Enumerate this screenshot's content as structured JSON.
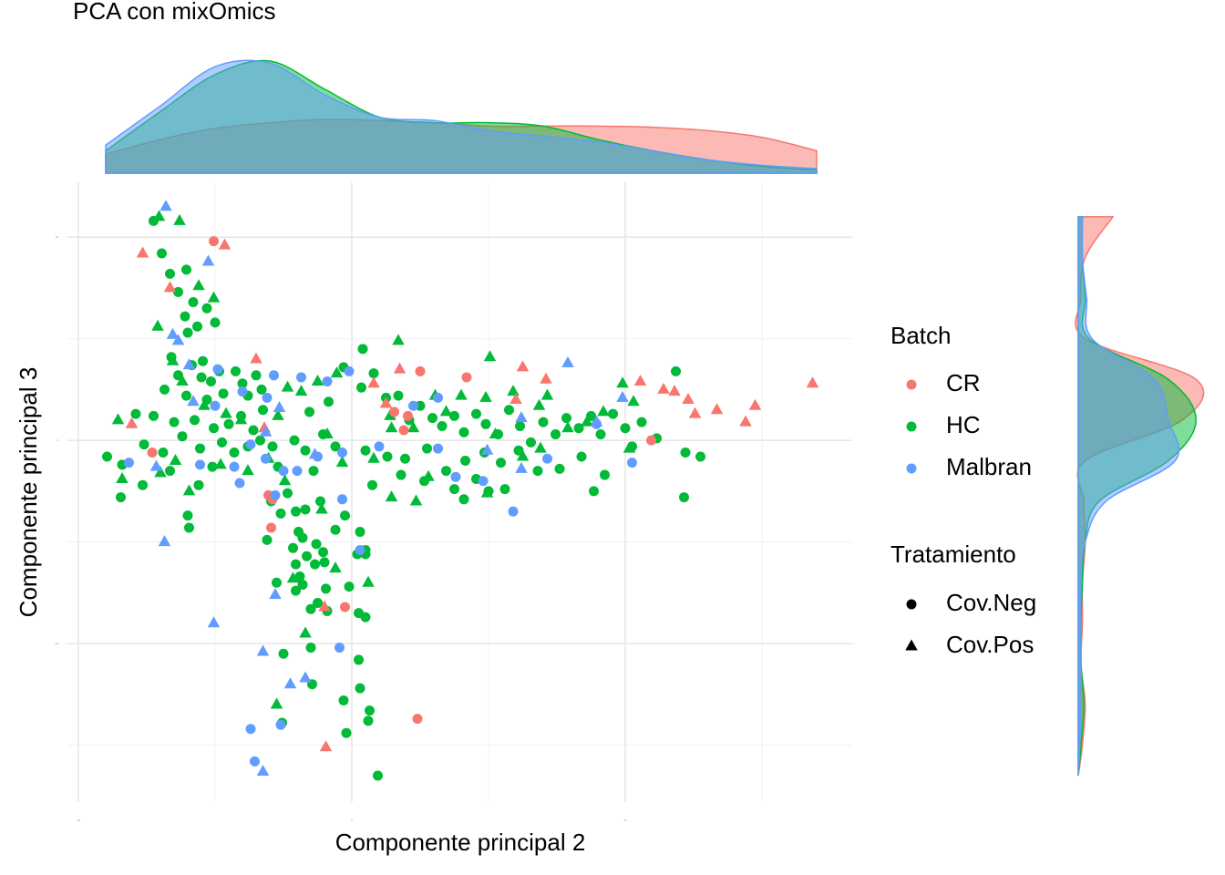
{
  "chart_data": {
    "type": "scatter",
    "title": "PCA con mixOmics",
    "x_label": "Componente principal 2",
    "y_label": "Componente principal 3",
    "xlim": [
      -20.8,
      36.6
    ],
    "ylim": [
      -17.8,
      12.7
    ],
    "xticks": [
      -20,
      0,
      20
    ],
    "yticks": [
      -10,
      0,
      10
    ],
    "x_minor": [
      -10,
      10,
      30
    ],
    "y_minor": [
      -15,
      -5,
      5
    ],
    "grid": true,
    "legends": [
      {
        "title": "Batch",
        "entries": [
          {
            "name": "CR",
            "color": "#F8766D"
          },
          {
            "name": "HC",
            "color": "#00BA38"
          },
          {
            "name": "Malbran",
            "color": "#619CFF"
          }
        ]
      },
      {
        "title": "Tratamiento",
        "entries": [
          {
            "name": "Cov.Neg",
            "shape": "circle"
          },
          {
            "name": "Cov.Pos",
            "shape": "triangle"
          }
        ]
      }
    ],
    "series": [
      {
        "color": "#00BA38",
        "shape": "circle",
        "x": [
          -14.5,
          -13.9,
          -13.3,
          -12.1,
          -12.7,
          -11.6,
          -12.2,
          -10.6,
          -12.0,
          -11.3,
          -10.0,
          -13.2,
          -11.7,
          -10.9,
          -12.7,
          -11.0,
          -10.3,
          -9.7,
          -13.7,
          -12.1,
          -10.6,
          -9.4,
          -8.5,
          -8.0,
          -7.6,
          -7.0,
          -6.6,
          -14.5,
          -13.0,
          -11.5,
          -10.1,
          -9.0,
          -8.1,
          -7.2,
          -6.5,
          -15.8,
          -17.9,
          -16.8,
          -15.2,
          -13.8,
          -12.4,
          -11.1,
          -9.5,
          -8.6,
          -7.6,
          -6.7,
          -16.9,
          -15.3,
          -13.3,
          -11.2,
          -10.2,
          -12.0,
          -11.9,
          -5.8,
          -5.9,
          -5.2,
          -4.7,
          -4.1,
          -3.4,
          -2.3,
          -0.5,
          -1.2,
          -3.9,
          -4.3,
          -3.6,
          -2.6,
          0.6,
          1.0,
          -6.2,
          -4.1,
          -3.3,
          -2.1,
          0.4,
          1.0,
          -3.8,
          -2.7,
          -2.0,
          -3.6,
          -1.9,
          -0.2,
          -4.1,
          -5.5,
          -2.5,
          -3.0,
          0.5,
          -1.8,
          1.0,
          -5.0,
          -3.0,
          0.5,
          -0.6,
          0.6,
          1.3,
          -0.4,
          1.2,
          -2.9,
          1.9,
          -5.1,
          0.7,
          1.6,
          2.5,
          3.4,
          4.2,
          5.0,
          5.9,
          6.6,
          7.5,
          8.2,
          9.1,
          9.8,
          10.7,
          11.5,
          12.3,
          13.1,
          14.0,
          14.9,
          15.7,
          16.6,
          17.5,
          18.2,
          19.1,
          20.0,
          21.2,
          22.3,
          23.7,
          25.5,
          24.4,
          20.5,
          1.0,
          2.6,
          3.9,
          5.5,
          6.9,
          8.3,
          9.7,
          10.9,
          12.2,
          13.6,
          15.2,
          16.8,
          18.5,
          1.5,
          3.6,
          5.3,
          7.5,
          9.1,
          11.2,
          17.7,
          24.3,
          0.8,
          -0.6,
          -1.7,
          -3.1,
          -2.1,
          -4.2,
          -3.4,
          -1.2,
          -5.4,
          -2.8,
          8.2,
          10.0
        ],
        "y": [
          10.8,
          9.2,
          8.2,
          8.4,
          7.3,
          6.8,
          6.1,
          6.5,
          5.3,
          5.6,
          5.8,
          4.1,
          3.7,
          3.9,
          3.2,
          3.1,
          2.9,
          3.4,
          2.5,
          2.2,
          2.0,
          2.3,
          3.4,
          2.8,
          2.2,
          3.2,
          2.5,
          1.2,
          0.9,
          1.0,
          0.6,
          0.8,
          1.2,
          0.5,
          1.5,
          1.3,
          -0.8,
          -1.2,
          -0.2,
          -0.6,
          0.2,
          -0.4,
          -0.1,
          -0.6,
          -0.3,
          0.0,
          -2.8,
          -2.2,
          -1.5,
          -2.2,
          -1.3,
          -3.7,
          -4.3,
          -0.3,
          -3.0,
          -3.6,
          -2.6,
          -3.5,
          -3.4,
          -3.0,
          -3.7,
          -4.4,
          -4.5,
          -5.3,
          -4.8,
          -5.1,
          -4.5,
          -5.4,
          -4.9,
          -6.1,
          -5.7,
          -5.5,
          -5.6,
          -5.6,
          -6.7,
          -6.1,
          -6.0,
          -7.1,
          -7.3,
          -7.2,
          -7.4,
          -7.0,
          -8.0,
          -8.3,
          -8.5,
          -8.4,
          -8.7,
          -10.5,
          -10.2,
          -10.8,
          -12.8,
          -12.2,
          -13.3,
          -14.4,
          -13.8,
          -12.0,
          -16.5,
          -13.9,
          2.6,
          3.3,
          2.1,
          2.2,
          1.0,
          1.7,
          1.1,
          0.7,
          1.2,
          0.4,
          1.3,
          0.8,
          0.3,
          1.5,
          0.7,
          -0.1,
          0.9,
          0.3,
          1.1,
          0.6,
          1.2,
          0.3,
          1.3,
          0.6,
          0.9,
          0.1,
          3.4,
          -0.8,
          -0.6,
          -0.3,
          -0.5,
          -0.8,
          -0.9,
          -0.4,
          -1.5,
          -1.0,
          -0.6,
          -1.1,
          -0.5,
          -1.5,
          -1.4,
          -0.8,
          -1.7,
          -2.2,
          -1.7,
          -2.0,
          -2.4,
          -1.9,
          -2.4,
          -2.5,
          -2.8,
          4.5,
          3.6,
          1.9,
          1.4,
          0.3,
          0.0,
          -0.5,
          -0.3,
          -1.3,
          -1.5,
          -2.9,
          -2.5
        ]
      },
      {
        "color": "#00BA38",
        "shape": "triangle",
        "x": [
          -14.1,
          -12.6,
          -11.2,
          -10.1,
          -14.2,
          -13.1,
          -12.4,
          -10.8,
          -9.2,
          -8.1,
          -17.1,
          -12.9,
          -14.0,
          -9.6,
          -7.6,
          -6.1,
          -5.4,
          -4.7,
          -3.7,
          -2.5,
          -1.1,
          1.6,
          2.8,
          3.4,
          4.5,
          6.1,
          6.9,
          8.0,
          9.8,
          10.5,
          11.8,
          12.5,
          13.7,
          14.3,
          15.8,
          17.2,
          18.4,
          19.8,
          20.6,
          10.1,
          2.9,
          4.7,
          9.9,
          13.8,
          -4.3,
          -1.2,
          -5.5,
          -3.4,
          1.2,
          -4.9,
          -0.7,
          -1.8,
          5.6,
          20.3,
          -11.9,
          -16.8,
          -2.2,
          2.9
        ],
        "y": [
          11.0,
          10.8,
          7.6,
          7.0,
          5.6,
          3.9,
          2.9,
          1.7,
          1.3,
          1.0,
          1.0,
          -1.0,
          -1.6,
          -1.2,
          -1.5,
          -0.9,
          1.2,
          2.6,
          2.4,
          2.9,
          3.3,
          -0.9,
          1.2,
          4.9,
          0.6,
          2.2,
          1.4,
          2.2,
          2.1,
          0.3,
          2.4,
          -0.8,
          1.7,
          2.2,
          0.6,
          0.9,
          1.4,
          2.8,
          1.9,
          4.1,
          -2.8,
          -3.0,
          -2.6,
          -0.4,
          -6.8,
          -6.3,
          -13.0,
          -9.5,
          -7.0,
          -2.0,
          -1.1,
          0.3,
          -1.8,
          -0.4,
          -2.5,
          -1.9,
          -3.4,
          0.6
        ]
      },
      {
        "color": "#F8766D",
        "shape": "circle",
        "x": [
          -14.6,
          -5.9,
          -5.8,
          5.0,
          8.4,
          4.1,
          3.8,
          3.1,
          21.9,
          -0.5,
          4.8,
          -10.1,
          -6.1
        ],
        "y": [
          -0.6,
          -4.3,
          -2.9,
          3.4,
          3.1,
          1.2,
          0.5,
          1.4,
          0.0,
          -8.2,
          -13.7,
          9.8,
          -2.7
        ]
      },
      {
        "color": "#F8766D",
        "shape": "triangle",
        "x": [
          -15.3,
          -13.3,
          -9.3,
          -7.0,
          -6.4,
          -16.1,
          3.5,
          12.5,
          14.2,
          21.1,
          23.6,
          25.1,
          26.7,
          29.5,
          28.8,
          33.7,
          1.6,
          -2.0,
          -1.9,
          24.6,
          22.8,
          2.5,
          12.0
        ],
        "y": [
          9.2,
          7.5,
          9.6,
          4.0,
          0.6,
          0.8,
          3.5,
          3.6,
          3.0,
          2.9,
          2.4,
          1.3,
          1.5,
          1.7,
          0.9,
          2.8,
          2.8,
          -8.2,
          -15.1,
          2.0,
          2.5,
          1.8,
          2.0
        ]
      },
      {
        "color": "#619CFF",
        "shape": "circle",
        "x": [
          -9.8,
          -10.0,
          -8.0,
          -6.2,
          -5.7,
          -3.7,
          -1.8,
          -0.2,
          -16.3,
          -11.1,
          -8.6,
          -7.4,
          -6.3,
          -5.0,
          -4.0,
          -2.5,
          -8.2,
          -0.7,
          4.5,
          6.3,
          7.6,
          9.6,
          11.8,
          14.3,
          17.9,
          20.5,
          6.3,
          0.6,
          -0.9,
          -7.4,
          -7.1,
          -5.2,
          -0.7,
          -5.6,
          2.0
        ],
        "y": [
          3.5,
          1.7,
          2.4,
          2.1,
          3.2,
          3.1,
          2.9,
          3.4,
          -1.1,
          -1.2,
          -1.3,
          -0.2,
          -0.9,
          -1.5,
          -1.5,
          -0.8,
          -2.1,
          -2.9,
          1.7,
          2.1,
          -1.8,
          -2.0,
          -3.5,
          -0.9,
          0.8,
          -1.1,
          -0.4,
          -5.4,
          -10.2,
          -14.2,
          -15.8,
          -14.0,
          -0.6,
          -2.7,
          -0.3
        ]
      },
      {
        "color": "#619CFF",
        "shape": "triangle",
        "x": [
          -13.6,
          -10.5,
          -13.1,
          -12.7,
          -11.6,
          -11.9,
          -14.3,
          -13.7,
          -10.1,
          -6.5,
          -5.6,
          -3.4,
          -6.5,
          -4.5,
          -5.3,
          -6.3,
          9.9,
          12.4,
          15.8,
          17.9,
          19.8,
          12.4,
          -2.7
        ],
        "y": [
          11.5,
          8.8,
          5.2,
          4.9,
          1.9,
          3.7,
          -1.3,
          -5.0,
          -9.0,
          -10.4,
          -7.6,
          -11.7,
          -16.3,
          -12.0,
          1.6,
          0.4,
          -0.5,
          1.1,
          3.8,
          0.9,
          2.1,
          -1.4,
          -0.7
        ]
      }
    ],
    "top_density": {
      "x": [
        -18,
        -14,
        -10,
        -6,
        -2,
        2,
        6,
        10,
        14,
        18,
        22,
        26,
        30,
        34
      ],
      "ylim": [
        0,
        1
      ],
      "series": [
        {
          "color": "#F8766D",
          "values": [
            0.17,
            0.3,
            0.4,
            0.45,
            0.48,
            0.47,
            0.45,
            0.42,
            0.42,
            0.42,
            0.41,
            0.38,
            0.32,
            0.2
          ]
        },
        {
          "color": "#00BA38",
          "values": [
            0.2,
            0.55,
            0.88,
            1.0,
            0.75,
            0.5,
            0.45,
            0.45,
            0.42,
            0.3,
            0.2,
            0.12,
            0.06,
            0.03
          ]
        },
        {
          "color": "#619CFF",
          "values": [
            0.25,
            0.6,
            0.95,
            0.98,
            0.7,
            0.5,
            0.47,
            0.38,
            0.33,
            0.28,
            0.2,
            0.12,
            0.07,
            0.04
          ]
        }
      ]
    },
    "right_density": {
      "y": [
        11,
        9,
        7,
        5,
        3,
        1,
        -1,
        -3,
        -5,
        -7,
        -9,
        -11,
        -13,
        -15,
        -16.5
      ],
      "xlim": [
        0,
        1
      ],
      "series": [
        {
          "color": "#F8766D",
          "values": [
            0.25,
            0.05,
            0.02,
            0.05,
            0.85,
            0.75,
            0.05,
            0.04,
            0.05,
            0.03,
            0.03,
            0.02,
            0.05,
            0.03,
            0
          ]
        },
        {
          "color": "#00BA38",
          "values": [
            0.03,
            0.03,
            0.05,
            0.08,
            0.65,
            0.85,
            0.65,
            0.15,
            0.05,
            0.03,
            0.02,
            0.02,
            0.04,
            0.02,
            0
          ]
        },
        {
          "color": "#619CFF",
          "values": [
            0.03,
            0.03,
            0.06,
            0.1,
            0.55,
            0.65,
            0.7,
            0.2,
            0.05,
            0.02,
            0.02,
            0.02,
            0.02,
            0.01,
            0
          ]
        }
      ]
    }
  }
}
